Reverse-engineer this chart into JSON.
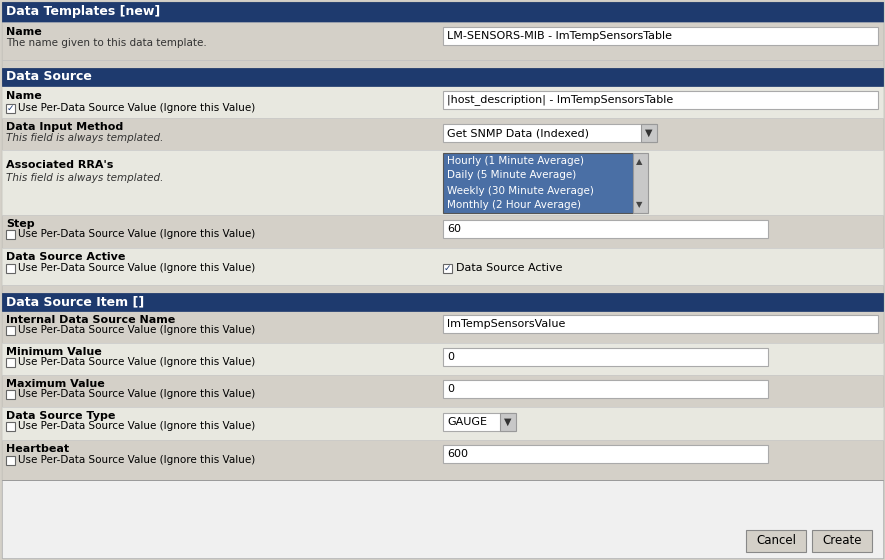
{
  "fig_width": 8.85,
  "fig_height": 5.6,
  "dpi": 100,
  "bg_color": "#d4d0c8",
  "header_color": "#1e3a6e",
  "header_text_color": "#ffffff",
  "light_bg": "#e8e8e0",
  "white_bg": "#f0f0f0",
  "input_bg": "#ffffff",
  "input_border": "#aaaaaa",
  "listbox_bg": "#4a6fa5",
  "listbox_text": "#ffffff",
  "button_bg": "#d4d0c8",
  "button_border": "#888888",
  "sep_color": "#a0a0a0",
  "dark_sep": "#888888",
  "title_text": "Data Templates [new]",
  "sec1_header": "Data Source",
  "sec2_header": "Data Source Item []",
  "name_label": "Name",
  "name_desc": "The name given to this data template.",
  "name_value": "LM-SENSORS-MIB - lmTempSensorsTable",
  "ds_name_label": "Name",
  "ds_name_check": "Use Per-Data Source Value (Ignore this Value)",
  "ds_name_value": "|host_description| - lmTempSensorsTable",
  "ds_input_label": "Data Input Method",
  "ds_input_italic": "This field is always templated.",
  "ds_input_value": "Get SNMP Data (Indexed)",
  "ds_rra_label": "Associated RRA's",
  "ds_rra_italic": "This field is always templated.",
  "ds_rra_items": [
    "Hourly (1 Minute Average)",
    "Daily (5 Minute Average)",
    "Weekly (30 Minute Average)",
    "Monthly (2 Hour Average)"
  ],
  "ds_step_label": "Step",
  "ds_step_check": "Use Per-Data Source Value (Ignore this Value)",
  "ds_step_value": "60",
  "ds_active_label": "Data Source Active",
  "ds_active_check": "Use Per-Data Source Value (Ignore this Value)",
  "ds_active_checkbox": "Data Source Active",
  "item_name_label": "Internal Data Source Name",
  "item_name_check": "Use Per-Data Source Value (Ignore this Value)",
  "item_name_value": "lmTempSensorsValue",
  "item_min_label": "Minimum Value",
  "item_min_check": "Use Per-Data Source Value (Ignore this Value)",
  "item_min_value": "0",
  "item_max_label": "Maximum Value",
  "item_max_check": "Use Per-Data Source Value (Ignore this Value)",
  "item_max_value": "0",
  "item_type_label": "Data Source Type",
  "item_type_check": "Use Per-Data Source Value (Ignore this Value)",
  "item_type_value": "GAUGE",
  "item_hb_label": "Heartbeat",
  "item_hb_check": "Use Per-Data Source Value (Ignore this Value)",
  "item_hb_value": "600",
  "btn_cancel": "Cancel",
  "btn_create": "Create"
}
